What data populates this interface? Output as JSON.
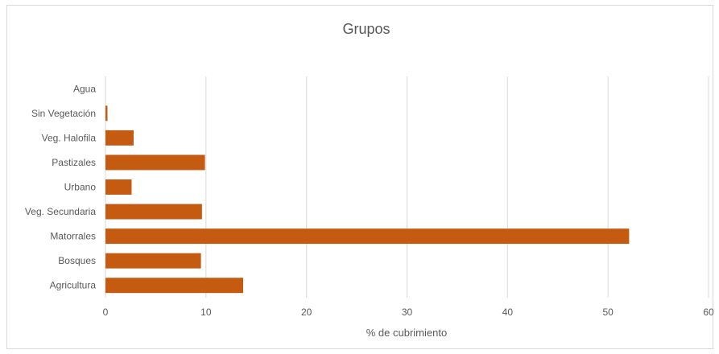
{
  "chart_data": {
    "type": "bar",
    "orientation": "horizontal",
    "title": "Grupos",
    "xlabel": "% de cubrimiento",
    "ylabel": "",
    "categories": [
      "Agricultura",
      "Bosques",
      "Matorrales",
      "Veg. Secundaria",
      "Urbano",
      "Pastizales",
      "Veg. Halofila",
      "Sin Vegetación",
      "Agua"
    ],
    "values": [
      13.7,
      9.5,
      52.1,
      9.6,
      2.6,
      9.9,
      2.8,
      0.2,
      0.0
    ],
    "xlim": [
      0,
      60
    ],
    "xticks": [
      0,
      10,
      20,
      30,
      40,
      50,
      60
    ],
    "grid": true,
    "legend": "none",
    "bar_color": "#c55a11"
  }
}
